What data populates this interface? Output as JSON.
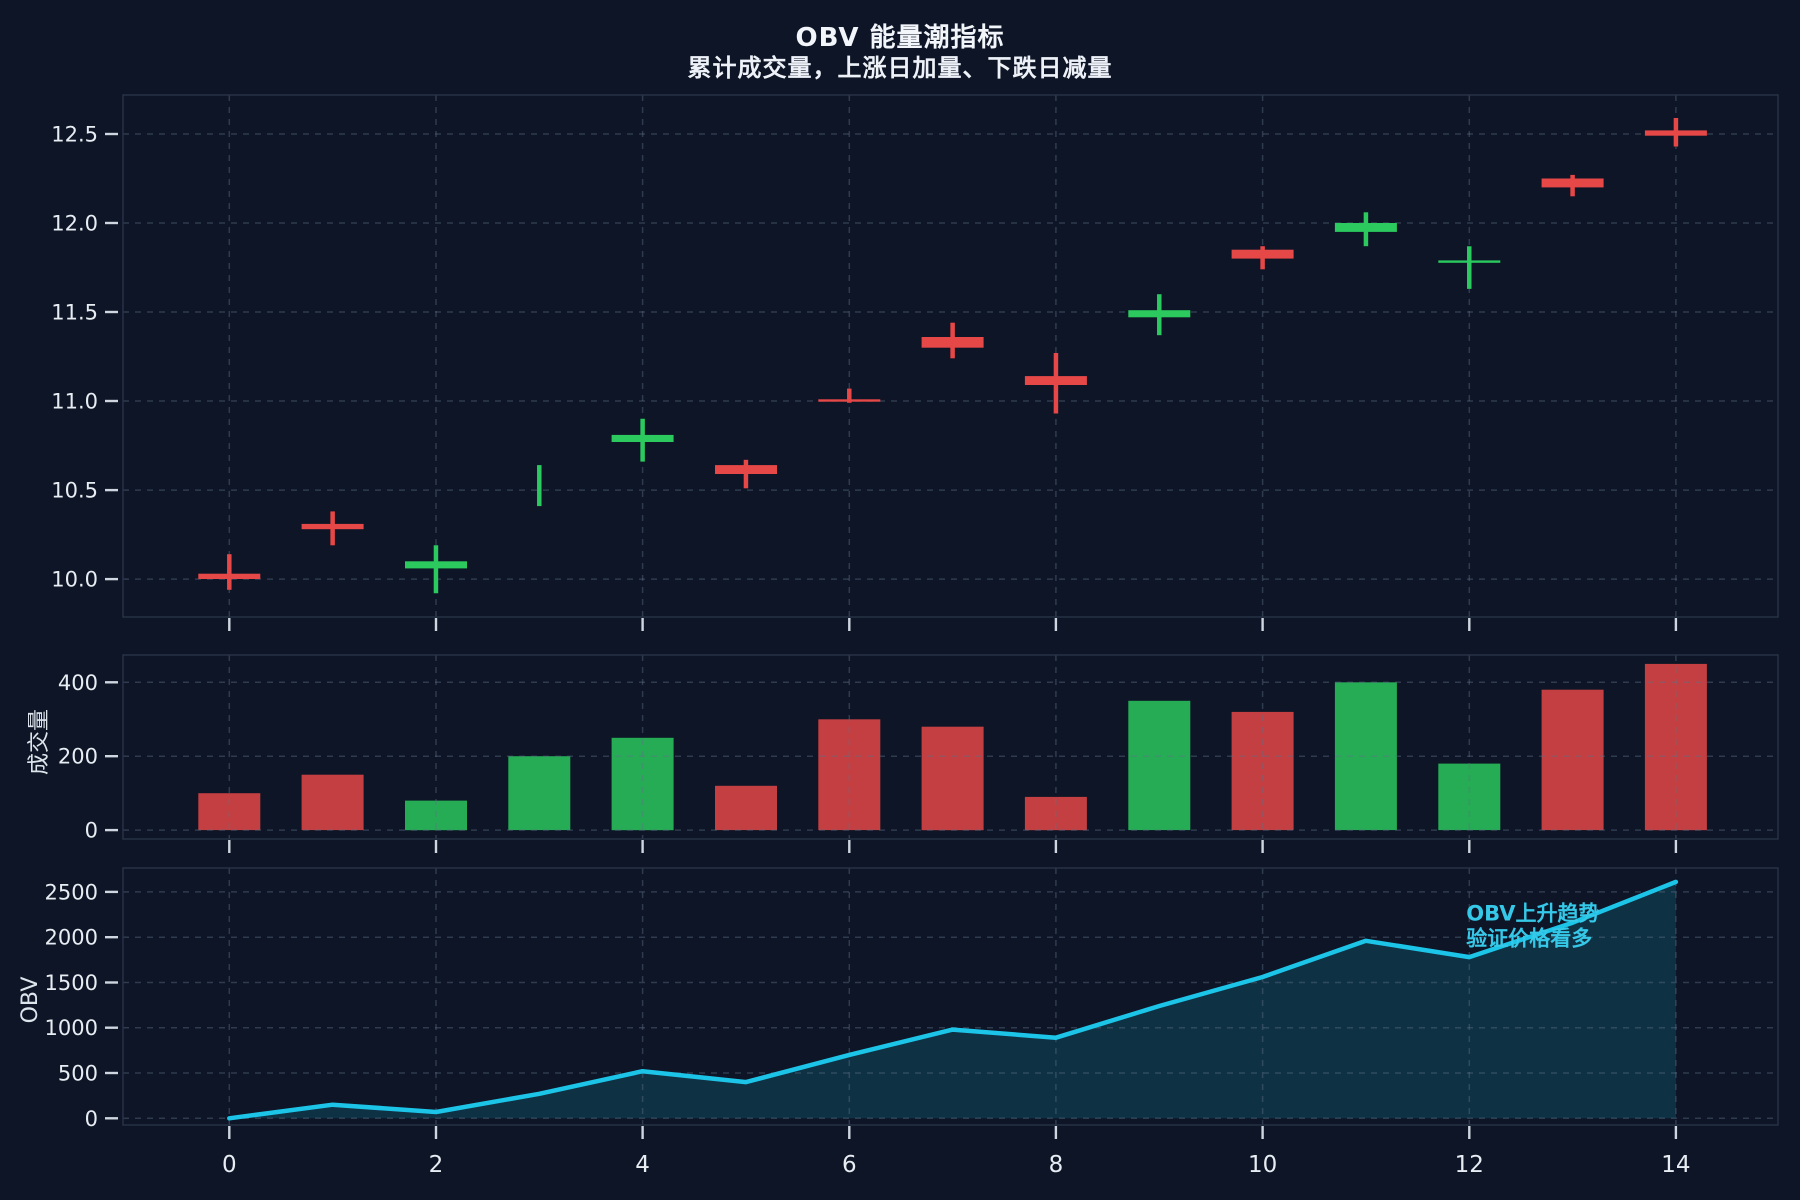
{
  "title": "OBV 能量潮指标",
  "subtitle": "累计成交量，上涨日加量、下跌日减量",
  "colors": {
    "background": "#0d1526",
    "panel_border": "#2a3448",
    "grid": "#5f7089",
    "tick": "#cfd6e0",
    "text": "#e8edf3",
    "candle_red": "#e64747",
    "candle_green": "#2bc95e",
    "obv_line": "#1cc4e8",
    "annotation": "#35c8e8"
  },
  "x_axis": {
    "ticks": [
      0,
      2,
      4,
      6,
      8,
      10,
      12,
      14
    ]
  },
  "chart_data": [
    {
      "type": "candlestick",
      "panel": "price",
      "ylim": [
        9.787,
        12.719
      ],
      "yticks": [
        10.0,
        10.5,
        11.0,
        11.5,
        12.0,
        12.5
      ],
      "tick_format": "1f",
      "grid": true,
      "candles": [
        {
          "x": 0,
          "open": 10.03,
          "high": 10.14,
          "low": 9.94,
          "close": 10.0,
          "color": "red",
          "body": true
        },
        {
          "x": 1,
          "open": 10.31,
          "high": 10.38,
          "low": 10.19,
          "close": 10.28,
          "color": "red",
          "body": true
        },
        {
          "x": 2,
          "open": 10.06,
          "high": 10.19,
          "low": 9.92,
          "close": 10.1,
          "color": "green",
          "body": true
        },
        {
          "x": 3,
          "open": 10.45,
          "high": 10.64,
          "low": 10.41,
          "close": 10.6,
          "color": "green",
          "body": false
        },
        {
          "x": 4,
          "open": 10.77,
          "high": 10.9,
          "low": 10.66,
          "close": 10.81,
          "color": "green",
          "body": true
        },
        {
          "x": 5,
          "open": 10.64,
          "high": 10.67,
          "low": 10.51,
          "close": 10.59,
          "color": "red",
          "body": true
        },
        {
          "x": 6,
          "open": 11.01,
          "high": 11.07,
          "low": 10.99,
          "close": 11.0,
          "color": "red",
          "body": true
        },
        {
          "x": 7,
          "open": 11.36,
          "high": 11.44,
          "low": 11.24,
          "close": 11.3,
          "color": "red",
          "body": true
        },
        {
          "x": 8,
          "open": 11.14,
          "high": 11.27,
          "low": 10.93,
          "close": 11.09,
          "color": "red",
          "body": true
        },
        {
          "x": 9,
          "open": 11.47,
          "high": 11.6,
          "low": 11.37,
          "close": 11.51,
          "color": "green",
          "body": true
        },
        {
          "x": 10,
          "open": 11.85,
          "high": 11.87,
          "low": 11.74,
          "close": 11.8,
          "color": "red",
          "body": true
        },
        {
          "x": 11,
          "open": 11.95,
          "high": 12.06,
          "low": 11.87,
          "close": 12.0,
          "color": "green",
          "body": true
        },
        {
          "x": 12,
          "open": 11.78,
          "high": 11.87,
          "low": 11.63,
          "close": 11.79,
          "color": "green",
          "body": true
        },
        {
          "x": 13,
          "open": 12.25,
          "high": 12.27,
          "low": 12.15,
          "close": 12.2,
          "color": "red",
          "body": true
        },
        {
          "x": 14,
          "open": 12.52,
          "high": 12.59,
          "low": 12.43,
          "close": 12.49,
          "color": "red",
          "body": true
        }
      ]
    },
    {
      "type": "bar",
      "panel": "volume",
      "ylabel": "成交量",
      "ylim": [
        -24,
        474
      ],
      "yticks": [
        0,
        200,
        400
      ],
      "grid": true,
      "x": [
        0,
        1,
        2,
        3,
        4,
        5,
        6,
        7,
        8,
        9,
        10,
        11,
        12,
        13,
        14
      ],
      "values": [
        100,
        150,
        80,
        200,
        250,
        120,
        300,
        280,
        90,
        350,
        320,
        400,
        180,
        380,
        450
      ],
      "colors": [
        "red",
        "red",
        "green",
        "green",
        "green",
        "red",
        "red",
        "red",
        "red",
        "green",
        "red",
        "green",
        "green",
        "red",
        "red"
      ]
    },
    {
      "type": "area",
      "panel": "obv",
      "ylabel": "OBV",
      "ylim": [
        -74,
        2764
      ],
      "yticks": [
        0,
        500,
        1000,
        1500,
        2000,
        2500
      ],
      "grid": true,
      "x": [
        0,
        1,
        2,
        3,
        4,
        5,
        6,
        7,
        8,
        9,
        10,
        11,
        12,
        13,
        14
      ],
      "values": [
        0,
        150,
        70,
        270,
        520,
        400,
        700,
        980,
        890,
        1240,
        1560,
        1960,
        1780,
        2160,
        2610
      ],
      "annotation": {
        "lines": [
          "OBV上升趋势",
          "验证价格看多"
        ],
        "x": 12.0,
        "y": 2270
      }
    }
  ]
}
